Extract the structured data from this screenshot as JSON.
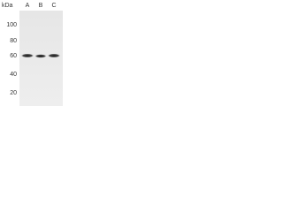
{
  "unit": "kDa",
  "lanes": [
    "A",
    "B",
    "C"
  ],
  "markers": [
    100,
    80,
    60,
    40,
    20
  ]
}
